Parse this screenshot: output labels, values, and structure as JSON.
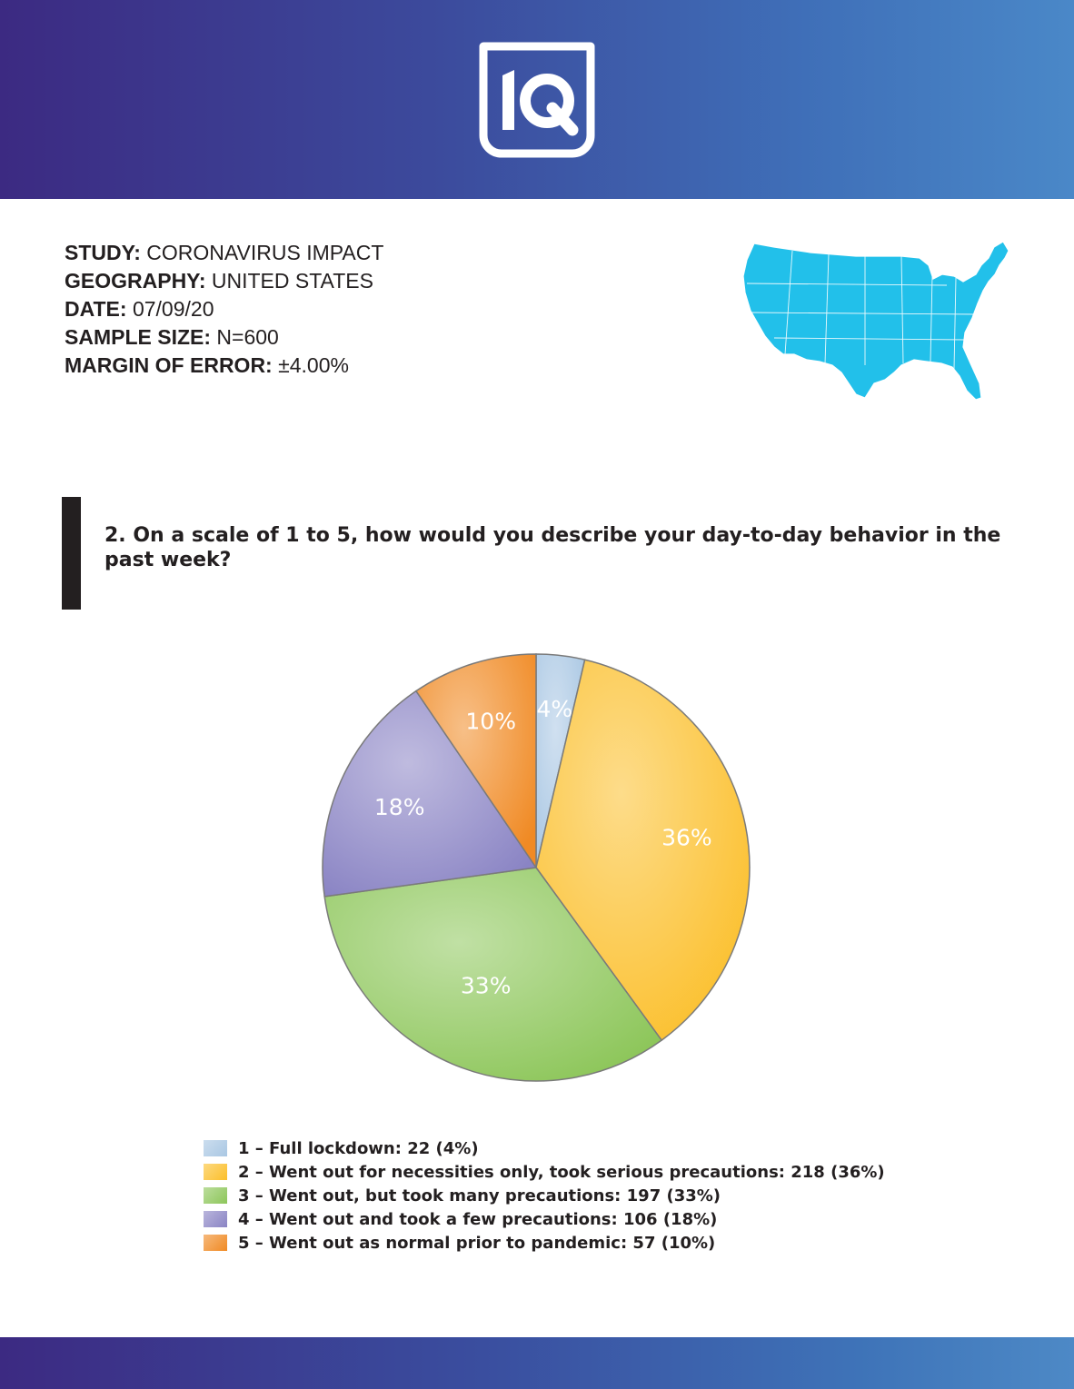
{
  "brand": {
    "logo_text": "1Q",
    "header_colors": [
      "#3c2a82",
      "#4a88c8"
    ]
  },
  "meta": {
    "study_label": "STUDY:",
    "study_value": "CORONAVIRUS IMPACT",
    "geography_label": "GEOGRAPHY:",
    "geography_value": "UNITED STATES",
    "date_label": "DATE:",
    "date_value": "07/09/20",
    "sample_label": "SAMPLE SIZE:",
    "sample_value": "N=600",
    "moe_label": "MARGIN OF ERROR:",
    "moe_value": "±4.00%"
  },
  "map": {
    "icon": "usa-map-icon",
    "color": "#22c0ea"
  },
  "question": "2. On a scale of 1 to 5, how would you describe your day-to-day behavior in the past week?",
  "chart_data": {
    "type": "pie",
    "title": "",
    "series": [
      {
        "name": "1 - Full lockdown",
        "count": 22,
        "percent": 4,
        "label": "4%",
        "color": "#a9c7e3"
      },
      {
        "name": "2 - Went out for necessities only, took serious precautions",
        "count": 218,
        "percent": 36,
        "label": "36%",
        "color": "#fbbf2b"
      },
      {
        "name": "3 - Went out, but took many precautions",
        "count": 197,
        "percent": 33,
        "label": "33%",
        "color": "#8dc65a"
      },
      {
        "name": "4 - Went out and took a few precautions",
        "count": 106,
        "percent": 18,
        "label": "18%",
        "color": "#8a84c4"
      },
      {
        "name": "5 - Went out as normal prior to pandemic",
        "count": 57,
        "percent": 10,
        "label": "10%",
        "color": "#f08a24"
      }
    ],
    "legend": [
      "1 – Full lockdown: 22 (4%)",
      "2 – Went out for necessities only, took serious precautions: 218 (36%)",
      "3 – Went out, but took many precautions: 197 (33%)",
      "4 – Went out and took a few precautions: 106 (18%)",
      "5 – Went out as normal prior to pandemic: 57 (10%)"
    ],
    "legend_placement": "bottom"
  }
}
